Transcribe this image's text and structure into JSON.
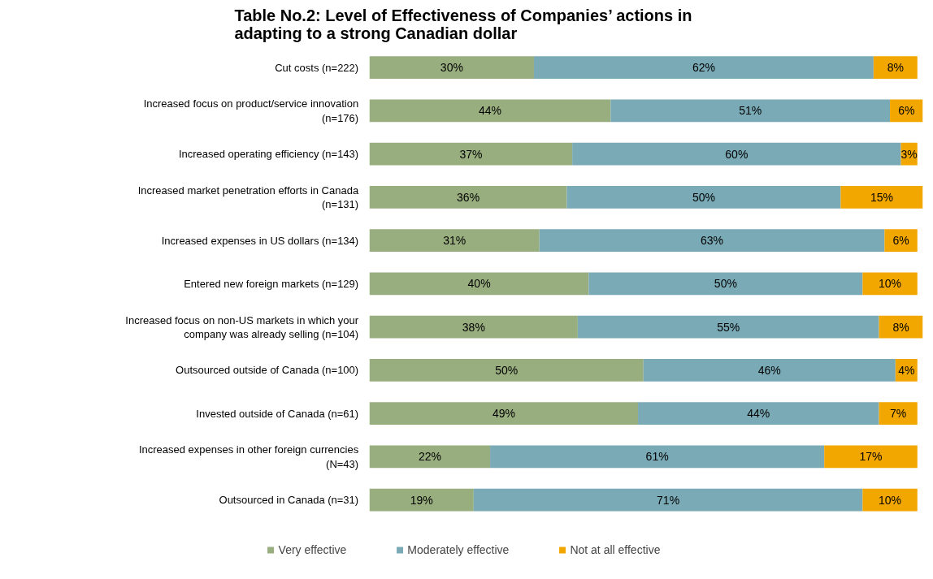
{
  "chart_data": {
    "type": "bar",
    "orientation": "horizontal",
    "stacked": true,
    "tick_labels": "y",
    "grid": false,
    "legend": "bottom",
    "title": "Table No.2: Level of Effectiveness of Companies’ actions in adapting to a  strong Canadian dollar",
    "categories": [
      "Cut costs (n=222)",
      "Increased focus on product/service innovation (n=176)",
      "Increased operating efficiency (n=143)",
      "Increased market penetration efforts in Canada (n=131)",
      "Increased expenses in US dollars (n=134)",
      "Entered new foreign markets (n=129)",
      "Increased focus on non-US markets in which your company was already selling (n=104)",
      "Outsourced outside of Canada (n=100)",
      "Invested outside of Canada (n=61)",
      "Increased expenses in other foreign currencies (N=43)",
      "Outsourced in Canada (n=31)"
    ],
    "series": [
      {
        "name": "Very effective",
        "color": "#98ae7e",
        "values": [
          30,
          44,
          37,
          36,
          31,
          40,
          38,
          50,
          49,
          22,
          19
        ],
        "value_labels": [
          "30%",
          "44%",
          "37%",
          "36%",
          "31%",
          "40%",
          "38%",
          "50%",
          "49%",
          "22%",
          "19%"
        ]
      },
      {
        "name": "Moderately effective",
        "color": "#79aab6",
        "values": [
          62,
          51,
          60,
          50,
          63,
          50,
          55,
          46,
          44,
          61,
          71
        ],
        "value_labels": [
          "62%",
          "51%",
          "60%",
          "50%",
          "63%",
          "50%",
          "55%",
          "46%",
          "44%",
          "61%",
          "71%"
        ]
      },
      {
        "name": "Not at all effective",
        "color": "#f2a700",
        "values": [
          8,
          6,
          3,
          15,
          6,
          10,
          8,
          4,
          7,
          17,
          10
        ],
        "value_labels": [
          "8%",
          "6%",
          "3%",
          "15%",
          "6%",
          "10%",
          "8%",
          "4%",
          "7%",
          "17%",
          "10%"
        ]
      }
    ]
  }
}
